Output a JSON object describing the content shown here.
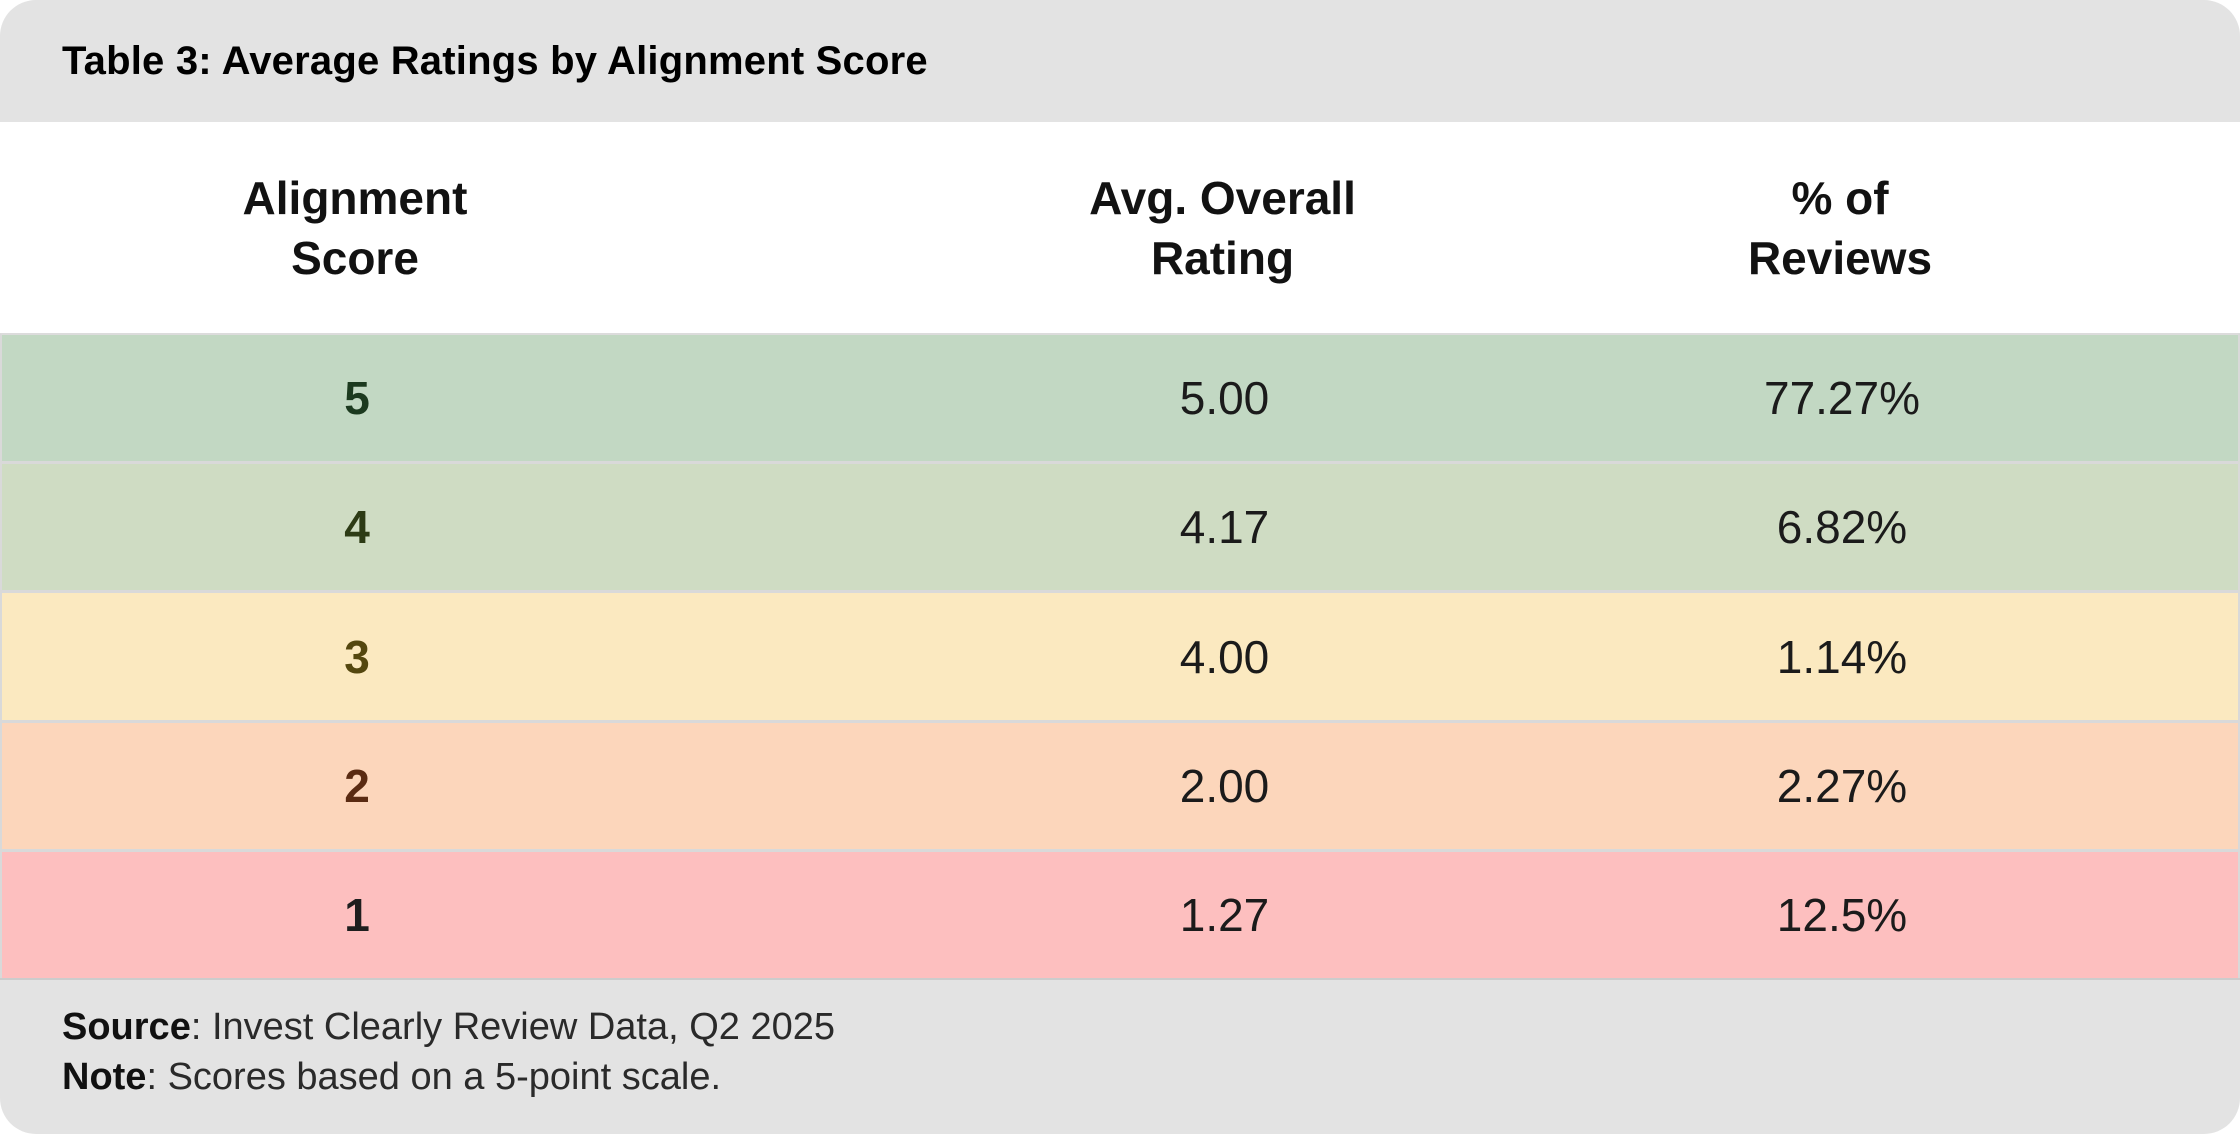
{
  "chart_data": {
    "type": "table",
    "title": "Table 3: Average Ratings by Alignment Score",
    "columns": [
      "Alignment Score",
      "Avg. Overall Rating",
      "% of Reviews"
    ],
    "rows": [
      {
        "alignment_score": 5,
        "avg_overall_rating": 5.0,
        "pct_of_reviews": 77.27
      },
      {
        "alignment_score": 4,
        "avg_overall_rating": 4.17,
        "pct_of_reviews": 6.82
      },
      {
        "alignment_score": 3,
        "avg_overall_rating": 4.0,
        "pct_of_reviews": 1.14
      },
      {
        "alignment_score": 2,
        "avg_overall_rating": 2.0,
        "pct_of_reviews": 2.27
      },
      {
        "alignment_score": 1,
        "avg_overall_rating": 1.27,
        "pct_of_reviews": 12.5
      }
    ],
    "source": "Invest Clearly Review Data, Q2 2025",
    "note": "Scores based on a 5-point scale.",
    "layout_hints": "rows color-coded green-to-red by score; gray title band and footer band; rounded card corners"
  },
  "header": {
    "title": "Table 3: Average Ratings by Alignment Score"
  },
  "table": {
    "column_headers": [
      {
        "label": "Alignment\nScore"
      },
      {
        "label": "Avg. Overall\nRating"
      },
      {
        "label": "% of\nReviews"
      }
    ],
    "rows": [
      {
        "score": "5",
        "rating": "5.00",
        "pct": "77.27%",
        "bg": "#c2d8c3",
        "score_color": "#1c3a1f"
      },
      {
        "score": "4",
        "rating": "4.17",
        "pct": "6.82%",
        "bg": "#cfdcc3",
        "score_color": "#2d3b15"
      },
      {
        "score": "3",
        "rating": "4.00",
        "pct": "1.14%",
        "bg": "#fbe9c0",
        "score_color": "#54470f"
      },
      {
        "score": "2",
        "rating": "2.00",
        "pct": "2.27%",
        "bg": "#fcd6bb",
        "score_color": "#5a2b12"
      },
      {
        "score": "1",
        "rating": "1.27",
        "pct": "12.5%",
        "bg": "#fdbfbf",
        "score_color": "#1e1e1e"
      }
    ]
  },
  "footer": {
    "source_label": "Source",
    "source_text": ": Invest Clearly Review Data, Q2 2025",
    "note_label": "Note",
    "note_text": ": Scores based on a 5-point scale."
  },
  "colors": {
    "band_bg": "#e3e3e3",
    "header_area_bg": "#ffffff",
    "separator": "#d9d9d9",
    "title_text": "#000000",
    "value_text": "#1b1b1b"
  }
}
